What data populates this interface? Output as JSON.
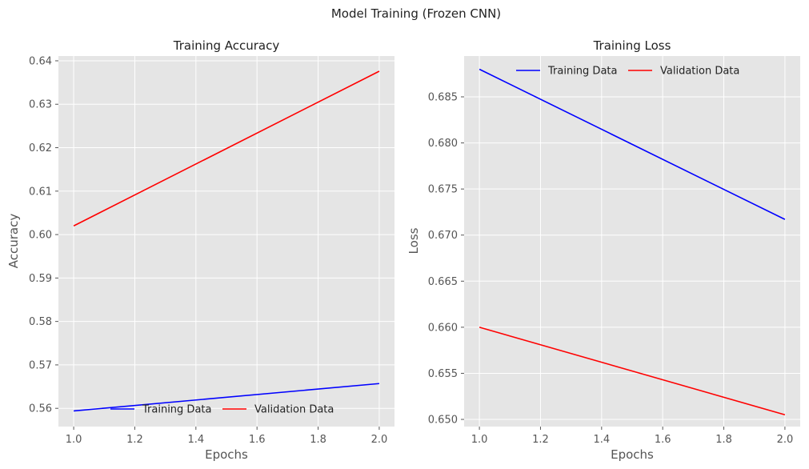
{
  "figure": {
    "suptitle": "Model Training (Frozen CNN)"
  },
  "style": {
    "panel_bg": "#e5e5e5",
    "grid": "#ffffff",
    "training_color": "#0000ff",
    "validation_color": "#ff0000"
  },
  "chart_data": [
    {
      "type": "line",
      "title": "Training Accuracy",
      "xlabel": "Epochs",
      "ylabel": "Accuracy",
      "x": [
        1.0,
        2.0
      ],
      "xlim": [
        0.95,
        2.05
      ],
      "ylim": [
        0.5558,
        0.6411
      ],
      "xticks": [
        1.0,
        1.2,
        1.4,
        1.6,
        1.8,
        2.0
      ],
      "xtick_labels": [
        "1.0",
        "1.2",
        "1.4",
        "1.6",
        "1.8",
        "2.0"
      ],
      "yticks": [
        0.56,
        0.57,
        0.58,
        0.59,
        0.6,
        0.61,
        0.62,
        0.63,
        0.64
      ],
      "ytick_labels": [
        "0.56",
        "0.57",
        "0.58",
        "0.59",
        "0.60",
        "0.61",
        "0.62",
        "0.63",
        "0.64"
      ],
      "grid": true,
      "legend": {
        "position": "lower center",
        "ncol": 2,
        "entries": [
          "Training Data",
          "Validation Data"
        ]
      },
      "series": [
        {
          "name": "Training Data",
          "color": "#0000ff",
          "values": [
            0.5594,
            0.5657
          ]
        },
        {
          "name": "Validation Data",
          "color": "#ff0000",
          "values": [
            0.602,
            0.6376
          ]
        }
      ]
    },
    {
      "type": "line",
      "title": "Training Loss",
      "xlabel": "Epochs",
      "ylabel": "Loss",
      "x": [
        1.0,
        2.0
      ],
      "xlim": [
        0.95,
        2.05
      ],
      "ylim": [
        0.64922,
        0.68943
      ],
      "xticks": [
        1.0,
        1.2,
        1.4,
        1.6,
        1.8,
        2.0
      ],
      "xtick_labels": [
        "1.0",
        "1.2",
        "1.4",
        "1.6",
        "1.8",
        "2.0"
      ],
      "yticks": [
        0.65,
        0.655,
        0.66,
        0.665,
        0.67,
        0.675,
        0.68,
        0.685
      ],
      "ytick_labels": [
        "0.650",
        "0.655",
        "0.660",
        "0.665",
        "0.670",
        "0.675",
        "0.680",
        "0.685"
      ],
      "grid": true,
      "legend": {
        "position": "upper center",
        "ncol": 2,
        "entries": [
          "Training Data",
          "Validation Data"
        ]
      },
      "series": [
        {
          "name": "Training Data",
          "color": "#0000ff",
          "values": [
            0.688,
            0.6717
          ]
        },
        {
          "name": "Validation Data",
          "color": "#ff0000",
          "values": [
            0.66,
            0.6505
          ]
        }
      ]
    }
  ]
}
